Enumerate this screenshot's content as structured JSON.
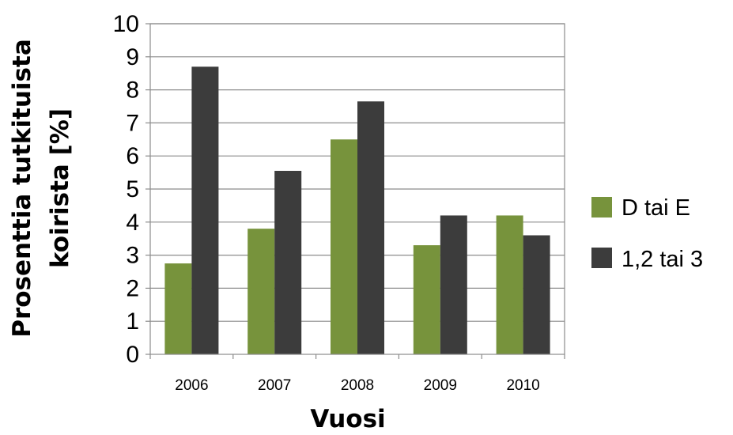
{
  "chart_data": {
    "type": "bar",
    "categories": [
      "2006",
      "2007",
      "2008",
      "2009",
      "2010"
    ],
    "series": [
      {
        "name": "D tai E",
        "color": "#77933c",
        "values": [
          2.75,
          3.8,
          6.5,
          3.3,
          4.2
        ]
      },
      {
        "name": "1,2 tai 3",
        "color": "#3c3c3c",
        "values": [
          8.7,
          5.55,
          7.65,
          4.2,
          3.6
        ]
      }
    ],
    "xlabel": "Vuosi",
    "ylabel_lines": [
      "Prosenttia tutkituista",
      "koirista [%]"
    ],
    "ylim": [
      0,
      10
    ],
    "yticks": [
      0,
      1,
      2,
      3,
      4,
      5,
      6,
      7,
      8,
      9,
      10
    ],
    "grid": true,
    "legend_position": "right"
  }
}
